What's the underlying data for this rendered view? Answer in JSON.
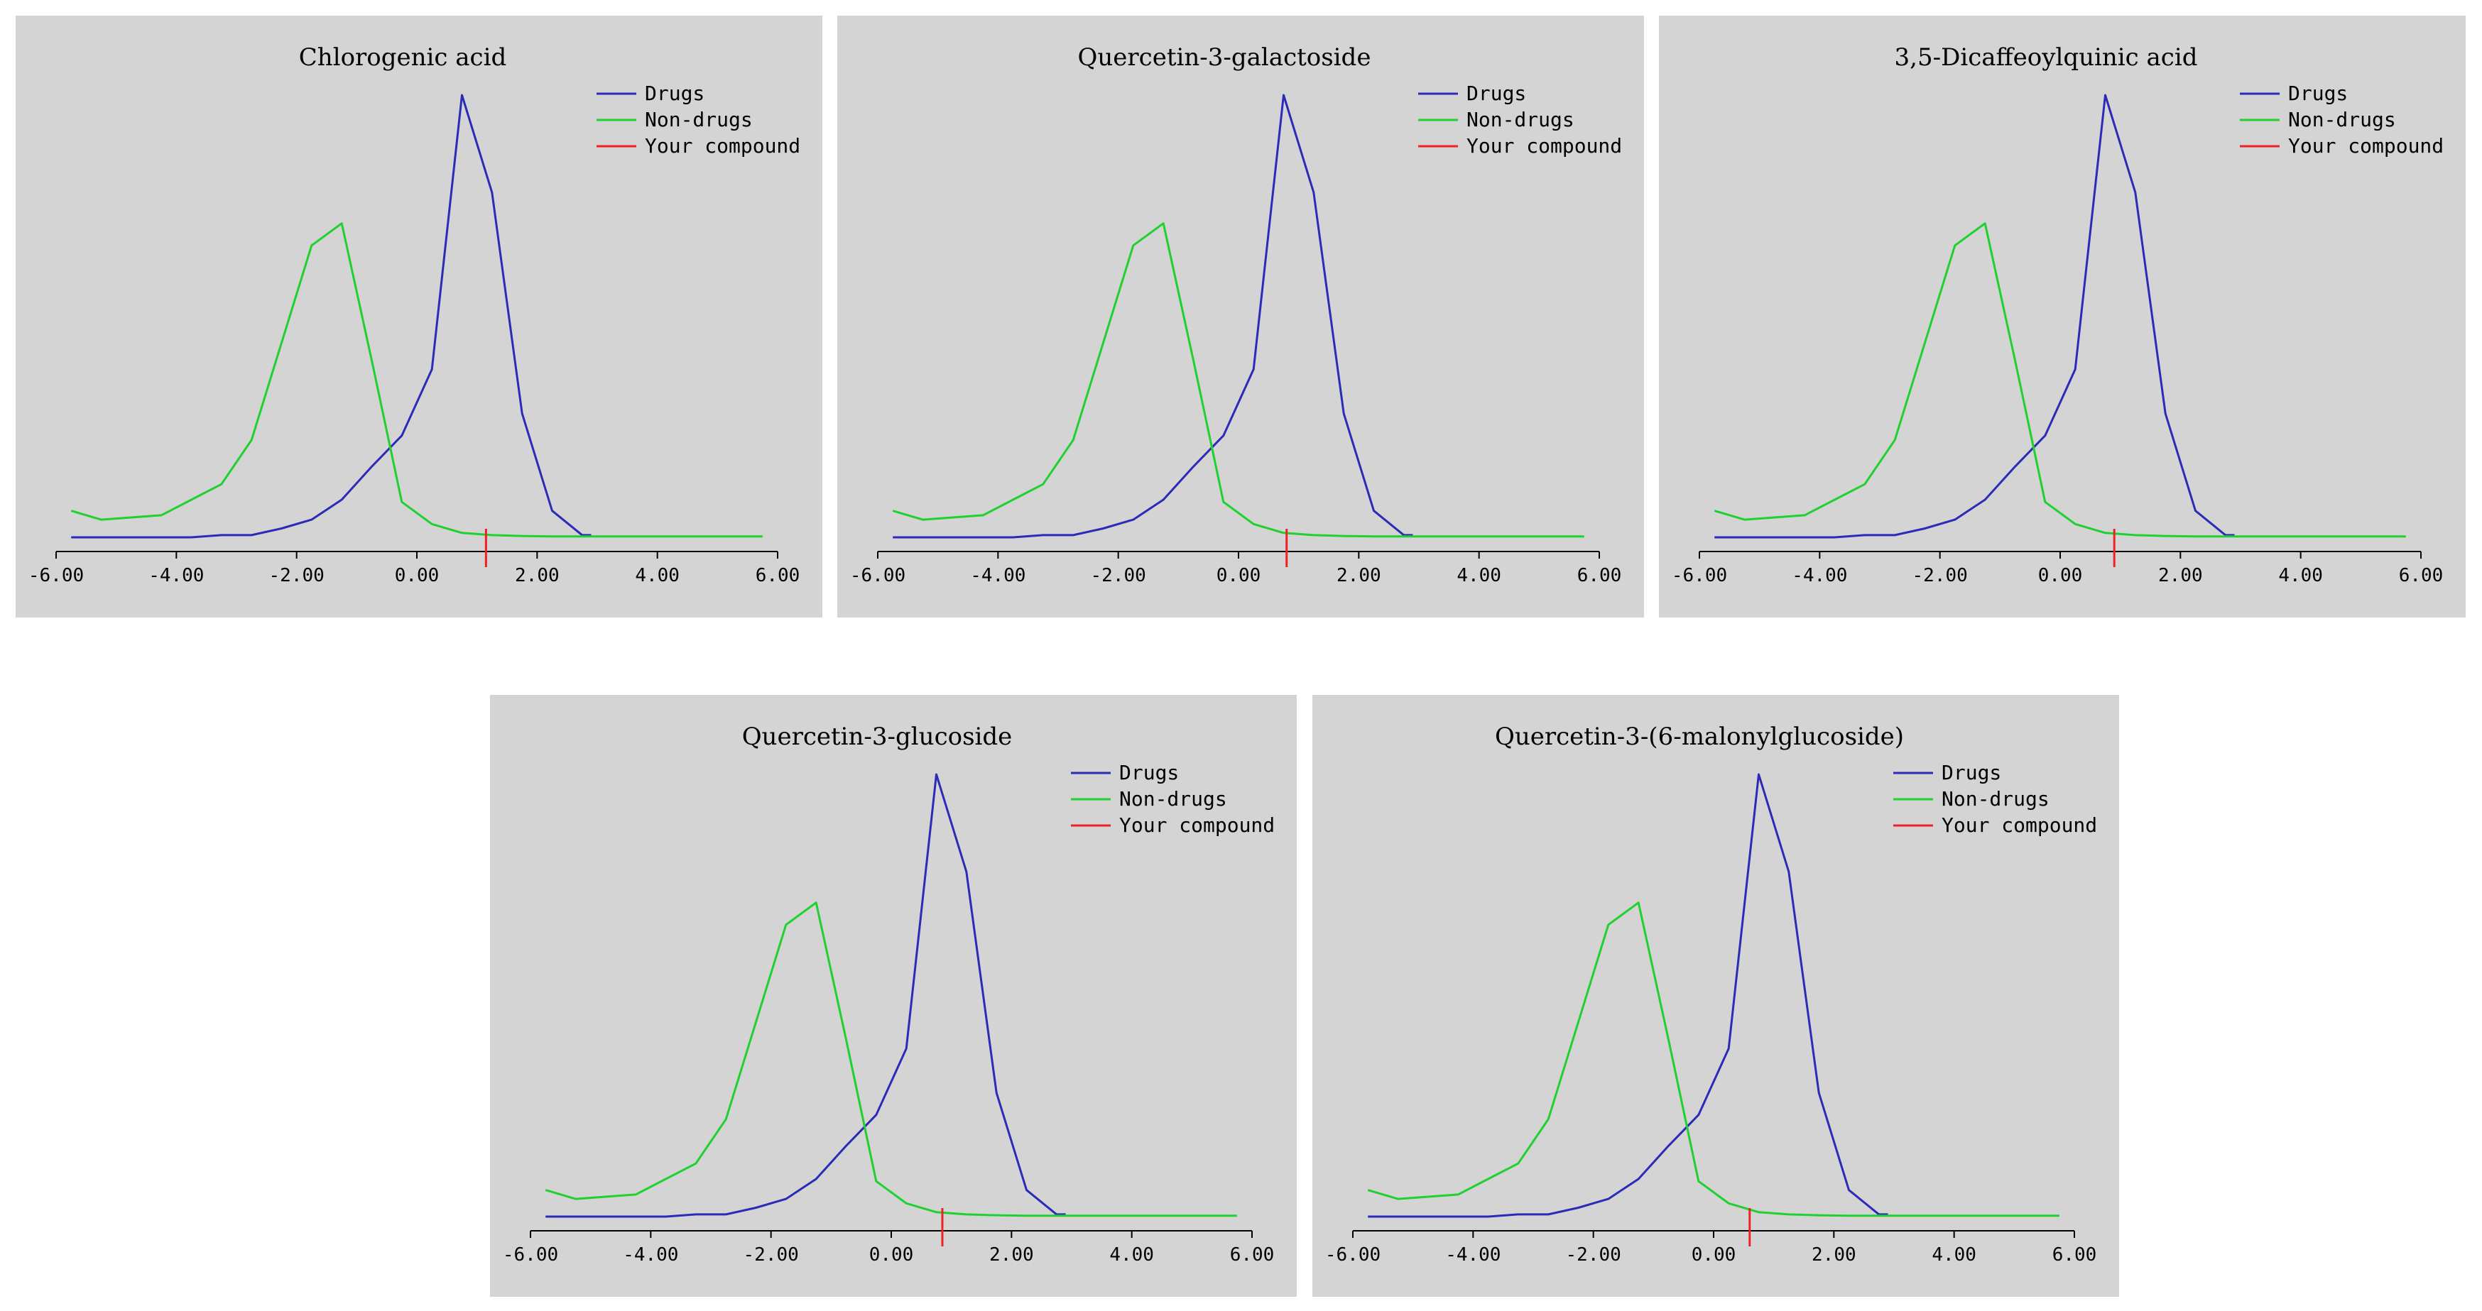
{
  "figure": "Drug-likeness score distribution panels",
  "colors": {
    "drugs": "#2b2bb8",
    "non_drugs": "#1fd12f",
    "compound": "#ee2222",
    "panel_bg": "#d4d4d4"
  },
  "chart_data": [
    {
      "type": "line",
      "title": "Chlorogenic acid",
      "legend": [
        "Drugs",
        "Non-drugs",
        "Your compound"
      ],
      "legend_position": "top-right",
      "xlim": [
        -6.0,
        6.0
      ],
      "ylim": [
        0,
        1
      ],
      "x_ticks": [
        "-6.00",
        "-4.00",
        "-2.00",
        "0.00",
        "2.00",
        "4.00",
        "6.00"
      ],
      "series": [
        {
          "name": "Drugs",
          "x": [
            -5.75,
            -5.25,
            -4.75,
            -4.25,
            -3.75,
            -3.25,
            -2.75,
            -2.25,
            -1.75,
            -1.25,
            -0.75,
            -0.25,
            0.25,
            0.75,
            1.25,
            1.75,
            2.25,
            2.75,
            2.9
          ],
          "values": [
            0.0,
            0.0,
            0.0,
            0.0,
            0.0,
            0.005,
            0.005,
            0.02,
            0.04,
            0.085,
            0.16,
            0.23,
            0.38,
            1.0,
            0.78,
            0.28,
            0.06,
            0.005,
            0.005
          ]
        },
        {
          "name": "Non-drugs",
          "x": [
            -5.75,
            -5.25,
            -4.75,
            -4.25,
            -3.75,
            -3.25,
            -2.75,
            -2.25,
            -1.75,
            -1.25,
            -0.75,
            -0.25,
            0.25,
            0.75,
            1.25,
            1.75,
            2.25,
            2.75,
            3.25,
            3.75,
            4.25,
            4.75,
            5.25,
            5.75
          ],
          "values": [
            0.06,
            0.04,
            0.045,
            0.05,
            0.085,
            0.12,
            0.22,
            0.44,
            0.66,
            0.71,
            0.4,
            0.08,
            0.03,
            0.01,
            0.005,
            0.003,
            0.002,
            0.002,
            0.002,
            0.002,
            0.002,
            0.002,
            0.002,
            0.002
          ]
        }
      ],
      "compound_score": 1.15
    },
    {
      "type": "line",
      "title": "Quercetin-3-galactoside",
      "legend": [
        "Drugs",
        "Non-drugs",
        "Your compound"
      ],
      "legend_position": "top-right",
      "xlim": [
        -6.0,
        6.0
      ],
      "ylim": [
        0,
        1
      ],
      "x_ticks": [
        "-6.00",
        "-4.00",
        "-2.00",
        "0.00",
        "2.00",
        "4.00",
        "6.00"
      ],
      "series": [
        {
          "name": "Drugs",
          "x": [
            -5.75,
            -5.25,
            -4.75,
            -4.25,
            -3.75,
            -3.25,
            -2.75,
            -2.25,
            -1.75,
            -1.25,
            -0.75,
            -0.25,
            0.25,
            0.75,
            1.25,
            1.75,
            2.25,
            2.75,
            2.9
          ],
          "values": [
            0.0,
            0.0,
            0.0,
            0.0,
            0.0,
            0.005,
            0.005,
            0.02,
            0.04,
            0.085,
            0.16,
            0.23,
            0.38,
            1.0,
            0.78,
            0.28,
            0.06,
            0.005,
            0.005
          ]
        },
        {
          "name": "Non-drugs",
          "x": [
            -5.75,
            -5.25,
            -4.75,
            -4.25,
            -3.75,
            -3.25,
            -2.75,
            -2.25,
            -1.75,
            -1.25,
            -0.75,
            -0.25,
            0.25,
            0.75,
            1.25,
            1.75,
            2.25,
            2.75,
            3.25,
            3.75,
            4.25,
            4.75,
            5.25,
            5.75
          ],
          "values": [
            0.06,
            0.04,
            0.045,
            0.05,
            0.085,
            0.12,
            0.22,
            0.44,
            0.66,
            0.71,
            0.4,
            0.08,
            0.03,
            0.01,
            0.005,
            0.003,
            0.002,
            0.002,
            0.002,
            0.002,
            0.002,
            0.002,
            0.002,
            0.002
          ]
        }
      ],
      "compound_score": 0.8
    },
    {
      "type": "line",
      "title": "3,5-Dicaffeoylquinic acid",
      "legend": [
        "Drugs",
        "Non-drugs",
        "Your compound"
      ],
      "legend_position": "top-right",
      "xlim": [
        -6.0,
        6.0
      ],
      "ylim": [
        0,
        1
      ],
      "x_ticks": [
        "-6.00",
        "-4.00",
        "-2.00",
        "0.00",
        "2.00",
        "4.00",
        "6.00"
      ],
      "series": [
        {
          "name": "Drugs",
          "x": [
            -5.75,
            -5.25,
            -4.75,
            -4.25,
            -3.75,
            -3.25,
            -2.75,
            -2.25,
            -1.75,
            -1.25,
            -0.75,
            -0.25,
            0.25,
            0.75,
            1.25,
            1.75,
            2.25,
            2.75,
            2.9
          ],
          "values": [
            0.0,
            0.0,
            0.0,
            0.0,
            0.0,
            0.005,
            0.005,
            0.02,
            0.04,
            0.085,
            0.16,
            0.23,
            0.38,
            1.0,
            0.78,
            0.28,
            0.06,
            0.005,
            0.005
          ]
        },
        {
          "name": "Non-drugs",
          "x": [
            -5.75,
            -5.25,
            -4.75,
            -4.25,
            -3.75,
            -3.25,
            -2.75,
            -2.25,
            -1.75,
            -1.25,
            -0.75,
            -0.25,
            0.25,
            0.75,
            1.25,
            1.75,
            2.25,
            2.75,
            3.25,
            3.75,
            4.25,
            4.75,
            5.25,
            5.75
          ],
          "values": [
            0.06,
            0.04,
            0.045,
            0.05,
            0.085,
            0.12,
            0.22,
            0.44,
            0.66,
            0.71,
            0.4,
            0.08,
            0.03,
            0.01,
            0.005,
            0.003,
            0.002,
            0.002,
            0.002,
            0.002,
            0.002,
            0.002,
            0.002,
            0.002
          ]
        }
      ],
      "compound_score": 0.9
    },
    {
      "type": "line",
      "title": "Quercetin-3-glucoside",
      "legend": [
        "Drugs",
        "Non-drugs",
        "Your compound"
      ],
      "legend_position": "top-right",
      "xlim": [
        -6.0,
        6.0
      ],
      "ylim": [
        0,
        1
      ],
      "x_ticks": [
        "-6.00",
        "-4.00",
        "-2.00",
        "0.00",
        "2.00",
        "4.00",
        "6.00"
      ],
      "series": [
        {
          "name": "Drugs",
          "x": [
            -5.75,
            -5.25,
            -4.75,
            -4.25,
            -3.75,
            -3.25,
            -2.75,
            -2.25,
            -1.75,
            -1.25,
            -0.75,
            -0.25,
            0.25,
            0.75,
            1.25,
            1.75,
            2.25,
            2.75,
            2.9
          ],
          "values": [
            0.0,
            0.0,
            0.0,
            0.0,
            0.0,
            0.005,
            0.005,
            0.02,
            0.04,
            0.085,
            0.16,
            0.23,
            0.38,
            1.0,
            0.78,
            0.28,
            0.06,
            0.005,
            0.005
          ]
        },
        {
          "name": "Non-drugs",
          "x": [
            -5.75,
            -5.25,
            -4.75,
            -4.25,
            -3.75,
            -3.25,
            -2.75,
            -2.25,
            -1.75,
            -1.25,
            -0.75,
            -0.25,
            0.25,
            0.75,
            1.25,
            1.75,
            2.25,
            2.75,
            3.25,
            3.75,
            4.25,
            4.75,
            5.25,
            5.75
          ],
          "values": [
            0.06,
            0.04,
            0.045,
            0.05,
            0.085,
            0.12,
            0.22,
            0.44,
            0.66,
            0.71,
            0.4,
            0.08,
            0.03,
            0.01,
            0.005,
            0.003,
            0.002,
            0.002,
            0.002,
            0.002,
            0.002,
            0.002,
            0.002,
            0.002
          ]
        }
      ],
      "compound_score": 0.85
    },
    {
      "type": "line",
      "title": "Quercetin-3-(6-malonylglucoside)",
      "legend": [
        "Drugs",
        "Non-drugs",
        "Your compound"
      ],
      "legend_position": "top-right",
      "xlim": [
        -6.0,
        6.0
      ],
      "ylim": [
        0,
        1
      ],
      "x_ticks": [
        "-6.00",
        "-4.00",
        "-2.00",
        "0.00",
        "2.00",
        "4.00",
        "6.00"
      ],
      "series": [
        {
          "name": "Drugs",
          "x": [
            -5.75,
            -5.25,
            -4.75,
            -4.25,
            -3.75,
            -3.25,
            -2.75,
            -2.25,
            -1.75,
            -1.25,
            -0.75,
            -0.25,
            0.25,
            0.75,
            1.25,
            1.75,
            2.25,
            2.75,
            2.9
          ],
          "values": [
            0.0,
            0.0,
            0.0,
            0.0,
            0.0,
            0.005,
            0.005,
            0.02,
            0.04,
            0.085,
            0.16,
            0.23,
            0.38,
            1.0,
            0.78,
            0.28,
            0.06,
            0.005,
            0.005
          ]
        },
        {
          "name": "Non-drugs",
          "x": [
            -5.75,
            -5.25,
            -4.75,
            -4.25,
            -3.75,
            -3.25,
            -2.75,
            -2.25,
            -1.75,
            -1.25,
            -0.75,
            -0.25,
            0.25,
            0.75,
            1.25,
            1.75,
            2.25,
            2.75,
            3.25,
            3.75,
            4.25,
            4.75,
            5.25,
            5.75
          ],
          "values": [
            0.06,
            0.04,
            0.045,
            0.05,
            0.085,
            0.12,
            0.22,
            0.44,
            0.66,
            0.71,
            0.4,
            0.08,
            0.03,
            0.01,
            0.005,
            0.003,
            0.002,
            0.002,
            0.002,
            0.002,
            0.002,
            0.002,
            0.002,
            0.002
          ]
        }
      ],
      "compound_score": 0.6
    }
  ]
}
